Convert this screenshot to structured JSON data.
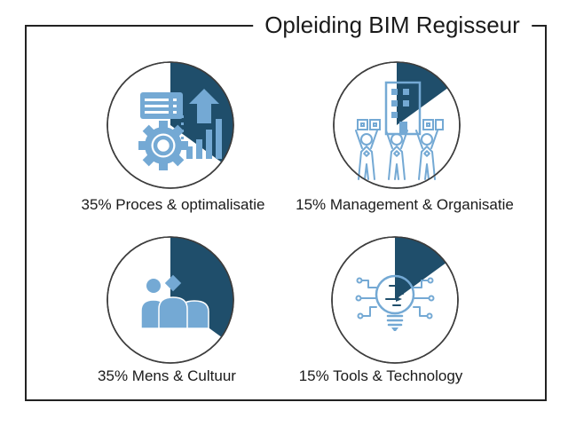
{
  "title": "Opleiding BIM Regisseur",
  "colors": {
    "accent_dark": "#1f4e6b",
    "accent_light": "#74a9d4",
    "frame": "#222222",
    "text": "#1a1a1a",
    "circle_outline": "#3d3d3d",
    "background": "#ffffff"
  },
  "chart_data": [
    {
      "type": "pie",
      "label": "35% Proces & optimalisatie",
      "percent": 35,
      "icon": "process-optimization-icon",
      "slice_color": "#1f4e6b",
      "start_angle": 0
    },
    {
      "type": "pie",
      "label": "15% Management & Organisatie",
      "percent": 15,
      "icon": "management-organisation-icon",
      "slice_color": "#1f4e6b",
      "start_angle": 0
    },
    {
      "type": "pie",
      "label": "35% Mens & Cultuur",
      "percent": 35,
      "icon": "people-culture-icon",
      "slice_color": "#1f4e6b",
      "start_angle": 0
    },
    {
      "type": "pie",
      "label": "15% Tools & Technology",
      "percent": 15,
      "icon": "tools-technology-icon",
      "slice_color": "#1f4e6b",
      "start_angle": 0
    }
  ]
}
